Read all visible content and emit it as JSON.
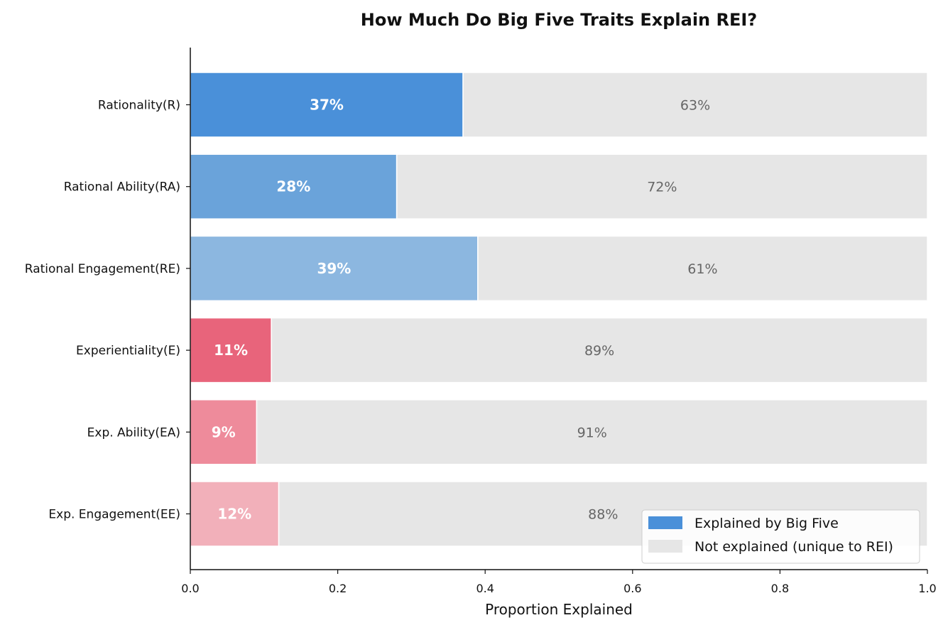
{
  "chart_data": {
    "type": "bar",
    "orientation": "horizontal",
    "stacked": true,
    "title": "How Much Do Big Five Traits Explain REI?",
    "xlabel": "Proportion Explained",
    "ylabel": "",
    "xlim": [
      0.0,
      1.0
    ],
    "xticks": [
      "0.0",
      "0.2",
      "0.4",
      "0.6",
      "0.8",
      "1.0"
    ],
    "xtick_values": [
      0.0,
      0.2,
      0.4,
      0.6,
      0.8,
      1.0
    ],
    "categories": [
      "Rationality(R)",
      "Rational Ability(RA)",
      "Rational Engagement(RE)",
      "Experientiality(E)",
      "Exp. Ability(EA)",
      "Exp. Engagement(EE)"
    ],
    "series": [
      {
        "name": "Explained by Big Five",
        "values": [
          0.37,
          0.28,
          0.39,
          0.11,
          0.09,
          0.12
        ],
        "labels": [
          "37%",
          "28%",
          "39%",
          "11%",
          "9%",
          "12%"
        ],
        "colors": [
          "#4a90d9",
          "#6aa3da",
          "#8cb7e0",
          "#e8647b",
          "#ee8b9b",
          "#f2b0ba"
        ]
      },
      {
        "name": "Not explained (unique to REI)",
        "values": [
          0.63,
          0.72,
          0.61,
          0.89,
          0.91,
          0.88
        ],
        "labels": [
          "63%",
          "72%",
          "61%",
          "89%",
          "91%",
          "88%"
        ],
        "color": "#e6e6e6"
      }
    ],
    "legend": {
      "position": "bottom-right",
      "entries": [
        "Explained by Big Five",
        "Not explained (unique to REI)"
      ],
      "colors": [
        "#4a90d9",
        "#e6e6e6"
      ]
    },
    "grid": false
  }
}
